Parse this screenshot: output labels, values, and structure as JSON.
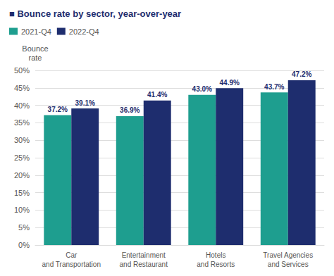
{
  "chart_data": {
    "type": "bar",
    "title": "■ Bounce rate by sector, year-over-year",
    "ylabel": "Bounce\nrate",
    "categories": [
      "Car\nand Transportation",
      "Entertainment\nand Restaurant",
      "Hotels\nand Resorts",
      "Travel Agencies\nand Services"
    ],
    "series": [
      {
        "name": "2021-Q4",
        "color": "#1e9e8f",
        "values": [
          37.2,
          36.9,
          43.0,
          43.7
        ],
        "value_labels": [
          "37.2%",
          "36.9%",
          "43.0%",
          "43.7%"
        ]
      },
      {
        "name": "2022-Q4",
        "color": "#1e2d6e",
        "values": [
          39.1,
          41.4,
          44.9,
          47.2
        ],
        "value_labels": [
          "39.1%",
          "41.4%",
          "44.9%",
          "47.2%"
        ]
      }
    ],
    "ylim": [
      0,
      50
    ],
    "yticks": [
      {
        "value": 0,
        "label": "0%"
      },
      {
        "value": 5,
        "label": "5%"
      },
      {
        "value": 10,
        "label": "10%"
      },
      {
        "value": 15,
        "label": "15%"
      },
      {
        "value": 20,
        "label": "20%"
      },
      {
        "value": 25,
        "label": "25%"
      },
      {
        "value": 30,
        "label": "30%"
      },
      {
        "value": 35,
        "label": "35%"
      },
      {
        "value": 40,
        "label": "40%"
      },
      {
        "value": 45,
        "label": "45%"
      },
      {
        "value": 50,
        "label": "50%"
      }
    ],
    "grid": true,
    "legend": "upper left",
    "data_labels": true
  }
}
